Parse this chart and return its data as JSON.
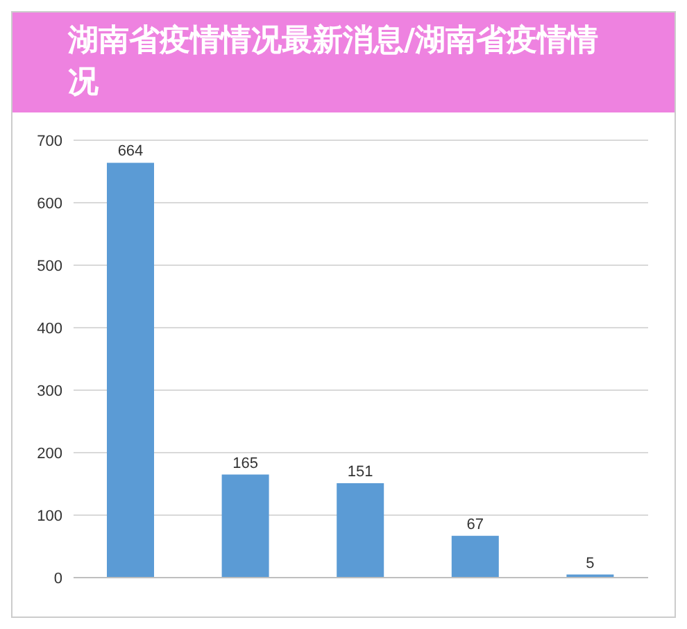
{
  "chart_data": {
    "type": "bar",
    "title": "湖南省疫情情况最新消息/湖南省疫情情况",
    "categories": [
      null,
      null,
      null,
      null,
      null
    ],
    "values": [
      664,
      165,
      151,
      67,
      5
    ],
    "color": "#5b9bd5",
    "ylim": [
      0,
      700
    ],
    "yticks": [
      0,
      100,
      200,
      300,
      400,
      500,
      600,
      700
    ],
    "grid": "y",
    "data_labels": true
  }
}
